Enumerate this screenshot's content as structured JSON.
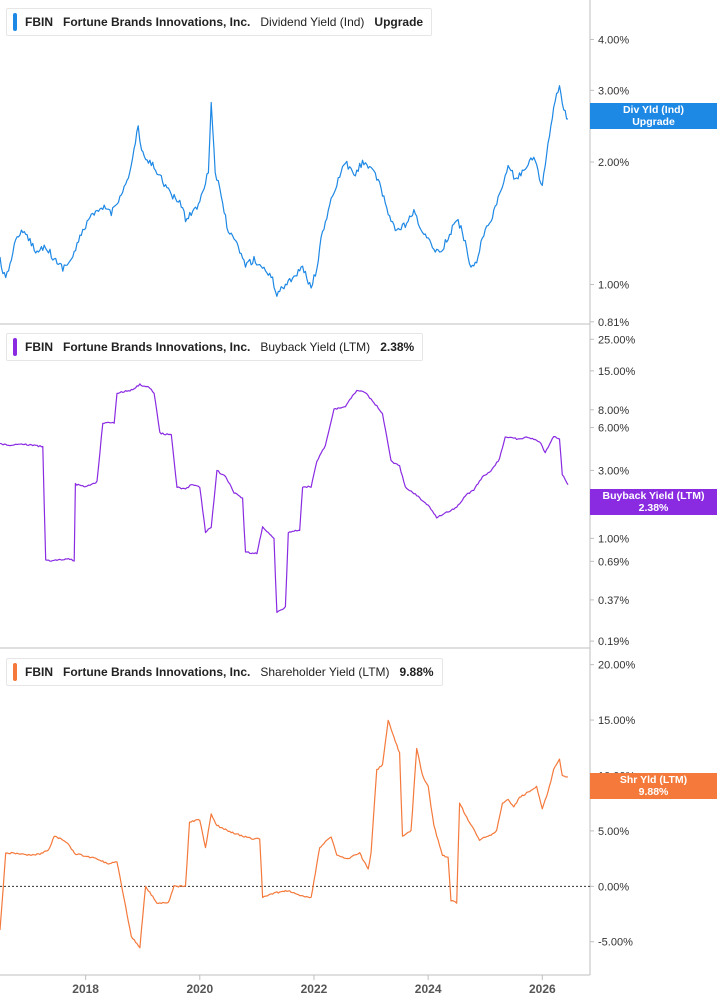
{
  "colors": {
    "dividend": "#1e88e5",
    "buyback": "#8a2be2",
    "shareholder": "#f4793b",
    "axis": "#bfbfbf"
  },
  "x_axis": {
    "ticks": [
      "2018",
      "2020",
      "2022",
      "2024",
      "2026"
    ],
    "range": [
      2016.5,
      2026.8
    ]
  },
  "chart_data": [
    {
      "type": "line",
      "legend": {
        "ticker": "FBIN",
        "company": "Fortune Brands Innovations, Inc.",
        "metric": "Dividend Yield (Ind)",
        "value": "Upgrade"
      },
      "tag": {
        "line1": "Div Yld (Ind)",
        "line2": "Upgrade"
      },
      "y_scale": "log",
      "ylim": [
        0.8,
        5.0
      ],
      "y_ticks": [
        {
          "value": 4.0,
          "label": "4.00%"
        },
        {
          "value": 3.0,
          "label": "3.00%"
        },
        {
          "value": 2.0,
          "label": "2.00%"
        },
        {
          "value": 1.0,
          "label": "1.00%"
        },
        {
          "value": 0.81,
          "label": "0.81%"
        }
      ],
      "points": [
        [
          2016.5,
          1.15
        ],
        [
          2016.6,
          1.02
        ],
        [
          2016.75,
          1.25
        ],
        [
          2016.85,
          1.35
        ],
        [
          2017.0,
          1.3
        ],
        [
          2017.15,
          1.2
        ],
        [
          2017.3,
          1.25
        ],
        [
          2017.45,
          1.15
        ],
        [
          2017.6,
          1.1
        ],
        [
          2017.75,
          1.15
        ],
        [
          2017.9,
          1.3
        ],
        [
          2018.05,
          1.45
        ],
        [
          2018.2,
          1.5
        ],
        [
          2018.35,
          1.55
        ],
        [
          2018.45,
          1.5
        ],
        [
          2018.55,
          1.6
        ],
        [
          2018.7,
          1.75
        ],
        [
          2018.8,
          1.95
        ],
        [
          2018.92,
          2.45
        ],
        [
          2018.98,
          2.1
        ],
        [
          2019.1,
          2.0
        ],
        [
          2019.2,
          1.95
        ],
        [
          2019.35,
          1.8
        ],
        [
          2019.5,
          1.65
        ],
        [
          2019.65,
          1.6
        ],
        [
          2019.75,
          1.45
        ],
        [
          2019.85,
          1.5
        ],
        [
          2019.95,
          1.55
        ],
        [
          2020.05,
          1.7
        ],
        [
          2020.15,
          1.9
        ],
        [
          2020.2,
          2.8
        ],
        [
          2020.27,
          1.9
        ],
        [
          2020.35,
          1.7
        ],
        [
          2020.5,
          1.35
        ],
        [
          2020.65,
          1.25
        ],
        [
          2020.8,
          1.12
        ],
        [
          2020.95,
          1.15
        ],
        [
          2021.1,
          1.1
        ],
        [
          2021.25,
          1.05
        ],
        [
          2021.35,
          0.95
        ],
        [
          2021.5,
          1.0
        ],
        [
          2021.65,
          1.05
        ],
        [
          2021.8,
          1.1
        ],
        [
          2021.95,
          0.98
        ],
        [
          2022.05,
          1.1
        ],
        [
          2022.15,
          1.35
        ],
        [
          2022.3,
          1.6
        ],
        [
          2022.45,
          1.85
        ],
        [
          2022.55,
          2.0
        ],
        [
          2022.7,
          1.85
        ],
        [
          2022.85,
          2.0
        ],
        [
          2023.0,
          1.95
        ],
        [
          2023.15,
          1.75
        ],
        [
          2023.3,
          1.5
        ],
        [
          2023.45,
          1.35
        ],
        [
          2023.6,
          1.4
        ],
        [
          2023.75,
          1.5
        ],
        [
          2023.9,
          1.35
        ],
        [
          2024.05,
          1.25
        ],
        [
          2024.2,
          1.2
        ],
        [
          2024.35,
          1.3
        ],
        [
          2024.5,
          1.45
        ],
        [
          2024.6,
          1.35
        ],
        [
          2024.75,
          1.1
        ],
        [
          2024.85,
          1.15
        ],
        [
          2024.95,
          1.3
        ],
        [
          2025.1,
          1.45
        ],
        [
          2025.25,
          1.65
        ],
        [
          2025.4,
          1.95
        ],
        [
          2025.55,
          1.8
        ],
        [
          2025.7,
          1.95
        ],
        [
          2025.85,
          2.05
        ],
        [
          2026.0,
          1.75
        ],
        [
          2026.1,
          2.2
        ],
        [
          2026.2,
          2.7
        ],
        [
          2026.3,
          3.1
        ],
        [
          2026.35,
          2.75
        ],
        [
          2026.45,
          2.55
        ]
      ]
    },
    {
      "type": "line",
      "legend": {
        "ticker": "FBIN",
        "company": "Fortune Brands Innovations, Inc.",
        "metric": "Buyback Yield (LTM)",
        "value": "2.38%"
      },
      "tag": {
        "line1": "Buyback Yield (LTM)",
        "line2": "2.38%"
      },
      "y_scale": "log",
      "ylim": [
        0.17,
        32.0
      ],
      "y_ticks": [
        {
          "value": 25.0,
          "label": "25.00%"
        },
        {
          "value": 15.0,
          "label": "15.00%"
        },
        {
          "value": 8.0,
          "label": "8.00%"
        },
        {
          "value": 6.0,
          "label": "6.00%"
        },
        {
          "value": 3.0,
          "label": "3.00%"
        },
        {
          "value": 2.0,
          "label": "2.00%"
        },
        {
          "value": 1.0,
          "label": "1.00%"
        },
        {
          "value": 0.69,
          "label": "0.69%"
        },
        {
          "value": 0.37,
          "label": "0.37%"
        },
        {
          "value": 0.19,
          "label": "0.19%"
        }
      ],
      "points": [
        [
          2016.5,
          4.6
        ],
        [
          2016.7,
          4.5
        ],
        [
          2016.9,
          4.6
        ],
        [
          2017.1,
          4.5
        ],
        [
          2017.25,
          4.4
        ],
        [
          2017.3,
          0.7
        ],
        [
          2017.5,
          0.7
        ],
        [
          2017.65,
          0.72
        ],
        [
          2017.8,
          0.7
        ],
        [
          2017.82,
          2.4
        ],
        [
          2018.0,
          2.3
        ],
        [
          2018.2,
          2.5
        ],
        [
          2018.3,
          6.5
        ],
        [
          2018.5,
          6.5
        ],
        [
          2018.55,
          10.5
        ],
        [
          2018.8,
          11.0
        ],
        [
          2018.95,
          12.0
        ],
        [
          2019.1,
          11.5
        ],
        [
          2019.2,
          10.5
        ],
        [
          2019.3,
          5.5
        ],
        [
          2019.5,
          5.3
        ],
        [
          2019.6,
          2.3
        ],
        [
          2019.75,
          2.2
        ],
        [
          2019.85,
          2.4
        ],
        [
          2020.0,
          2.3
        ],
        [
          2020.1,
          1.1
        ],
        [
          2020.2,
          1.2
        ],
        [
          2020.3,
          3.0
        ],
        [
          2020.45,
          2.7
        ],
        [
          2020.6,
          2.1
        ],
        [
          2020.75,
          1.9
        ],
        [
          2020.8,
          0.8
        ],
        [
          2021.0,
          0.78
        ],
        [
          2021.1,
          1.2
        ],
        [
          2021.3,
          1.0
        ],
        [
          2021.35,
          0.3
        ],
        [
          2021.5,
          0.33
        ],
        [
          2021.55,
          1.1
        ],
        [
          2021.75,
          1.15
        ],
        [
          2021.8,
          2.3
        ],
        [
          2021.95,
          2.3
        ],
        [
          2022.05,
          3.5
        ],
        [
          2022.2,
          4.5
        ],
        [
          2022.35,
          8.0
        ],
        [
          2022.55,
          8.5
        ],
        [
          2022.75,
          11.0
        ],
        [
          2022.9,
          10.5
        ],
        [
          2023.05,
          9.0
        ],
        [
          2023.2,
          7.5
        ],
        [
          2023.35,
          3.5
        ],
        [
          2023.5,
          3.2
        ],
        [
          2023.6,
          2.3
        ],
        [
          2023.8,
          2.0
        ],
        [
          2024.0,
          1.7
        ],
        [
          2024.15,
          1.4
        ],
        [
          2024.3,
          1.5
        ],
        [
          2024.5,
          1.65
        ],
        [
          2024.65,
          2.0
        ],
        [
          2024.8,
          2.2
        ],
        [
          2024.95,
          2.7
        ],
        [
          2025.1,
          3.0
        ],
        [
          2025.25,
          3.6
        ],
        [
          2025.35,
          5.2
        ],
        [
          2025.55,
          5.0
        ],
        [
          2025.75,
          5.1
        ],
        [
          2025.95,
          4.8
        ],
        [
          2026.05,
          4.0
        ],
        [
          2026.2,
          5.2
        ],
        [
          2026.3,
          5.0
        ],
        [
          2026.35,
          2.8
        ],
        [
          2026.45,
          2.38
        ]
      ]
    },
    {
      "type": "line",
      "legend": {
        "ticker": "FBIN",
        "company": "Fortune Brands Innovations, Inc.",
        "metric": "Shareholder Yield (LTM)",
        "value": "9.88%"
      },
      "tag": {
        "line1": "Shr Yld (LTM)",
        "line2": "9.88%"
      },
      "y_scale": "linear",
      "ylim": [
        -8.0,
        21.5
      ],
      "zero_line": true,
      "y_ticks": [
        {
          "value": 20.0,
          "label": "20.00%"
        },
        {
          "value": 15.0,
          "label": "15.00%"
        },
        {
          "value": 10.0,
          "label": "10.00%"
        },
        {
          "value": 5.0,
          "label": "5.00%"
        },
        {
          "value": 0.0,
          "label": "0.00%"
        },
        {
          "value": -5.0,
          "label": "-5.00%"
        }
      ],
      "points": [
        [
          2016.5,
          -4.0
        ],
        [
          2016.6,
          3.0
        ],
        [
          2016.8,
          3.0
        ],
        [
          2017.0,
          2.8
        ],
        [
          2017.2,
          2.9
        ],
        [
          2017.35,
          3.3
        ],
        [
          2017.45,
          4.5
        ],
        [
          2017.6,
          4.2
        ],
        [
          2017.7,
          3.8
        ],
        [
          2017.8,
          3.0
        ],
        [
          2018.0,
          2.7
        ],
        [
          2018.2,
          2.5
        ],
        [
          2018.4,
          2.0
        ],
        [
          2018.55,
          2.2
        ],
        [
          2018.8,
          -4.5
        ],
        [
          2018.95,
          -5.5
        ],
        [
          2019.05,
          0.0
        ],
        [
          2019.25,
          -1.5
        ],
        [
          2019.45,
          -1.5
        ],
        [
          2019.55,
          0.0
        ],
        [
          2019.75,
          0.0
        ],
        [
          2019.82,
          5.8
        ],
        [
          2020.0,
          6.0
        ],
        [
          2020.1,
          3.5
        ],
        [
          2020.2,
          6.5
        ],
        [
          2020.3,
          5.5
        ],
        [
          2020.5,
          5.0
        ],
        [
          2020.7,
          4.6
        ],
        [
          2020.9,
          4.3
        ],
        [
          2021.05,
          4.3
        ],
        [
          2021.1,
          -1.0
        ],
        [
          2021.3,
          -0.6
        ],
        [
          2021.55,
          -0.4
        ],
        [
          2021.75,
          -0.8
        ],
        [
          2021.95,
          -1.0
        ],
        [
          2022.1,
          3.5
        ],
        [
          2022.3,
          4.5
        ],
        [
          2022.4,
          2.8
        ],
        [
          2022.6,
          2.5
        ],
        [
          2022.8,
          3.0
        ],
        [
          2022.95,
          1.5
        ],
        [
          2023.0,
          3.0
        ],
        [
          2023.1,
          10.5
        ],
        [
          2023.2,
          11.0
        ],
        [
          2023.3,
          15.0
        ],
        [
          2023.4,
          13.5
        ],
        [
          2023.5,
          12.0
        ],
        [
          2023.55,
          4.5
        ],
        [
          2023.7,
          5.0
        ],
        [
          2023.8,
          12.5
        ],
        [
          2023.9,
          10.0
        ],
        [
          2024.0,
          9.0
        ],
        [
          2024.1,
          5.5
        ],
        [
          2024.25,
          2.8
        ],
        [
          2024.35,
          2.6
        ],
        [
          2024.4,
          -1.3
        ],
        [
          2024.5,
          -1.5
        ],
        [
          2024.55,
          7.5
        ],
        [
          2024.7,
          6.0
        ],
        [
          2024.9,
          4.2
        ],
        [
          2025.05,
          4.5
        ],
        [
          2025.2,
          5.0
        ],
        [
          2025.3,
          7.5
        ],
        [
          2025.4,
          7.8
        ],
        [
          2025.5,
          7.2
        ],
        [
          2025.6,
          8.0
        ],
        [
          2025.75,
          8.5
        ],
        [
          2025.9,
          9.0
        ],
        [
          2026.0,
          7.0
        ],
        [
          2026.1,
          8.5
        ],
        [
          2026.2,
          10.5
        ],
        [
          2026.3,
          11.5
        ],
        [
          2026.35,
          10.0
        ],
        [
          2026.45,
          9.88
        ]
      ]
    }
  ]
}
